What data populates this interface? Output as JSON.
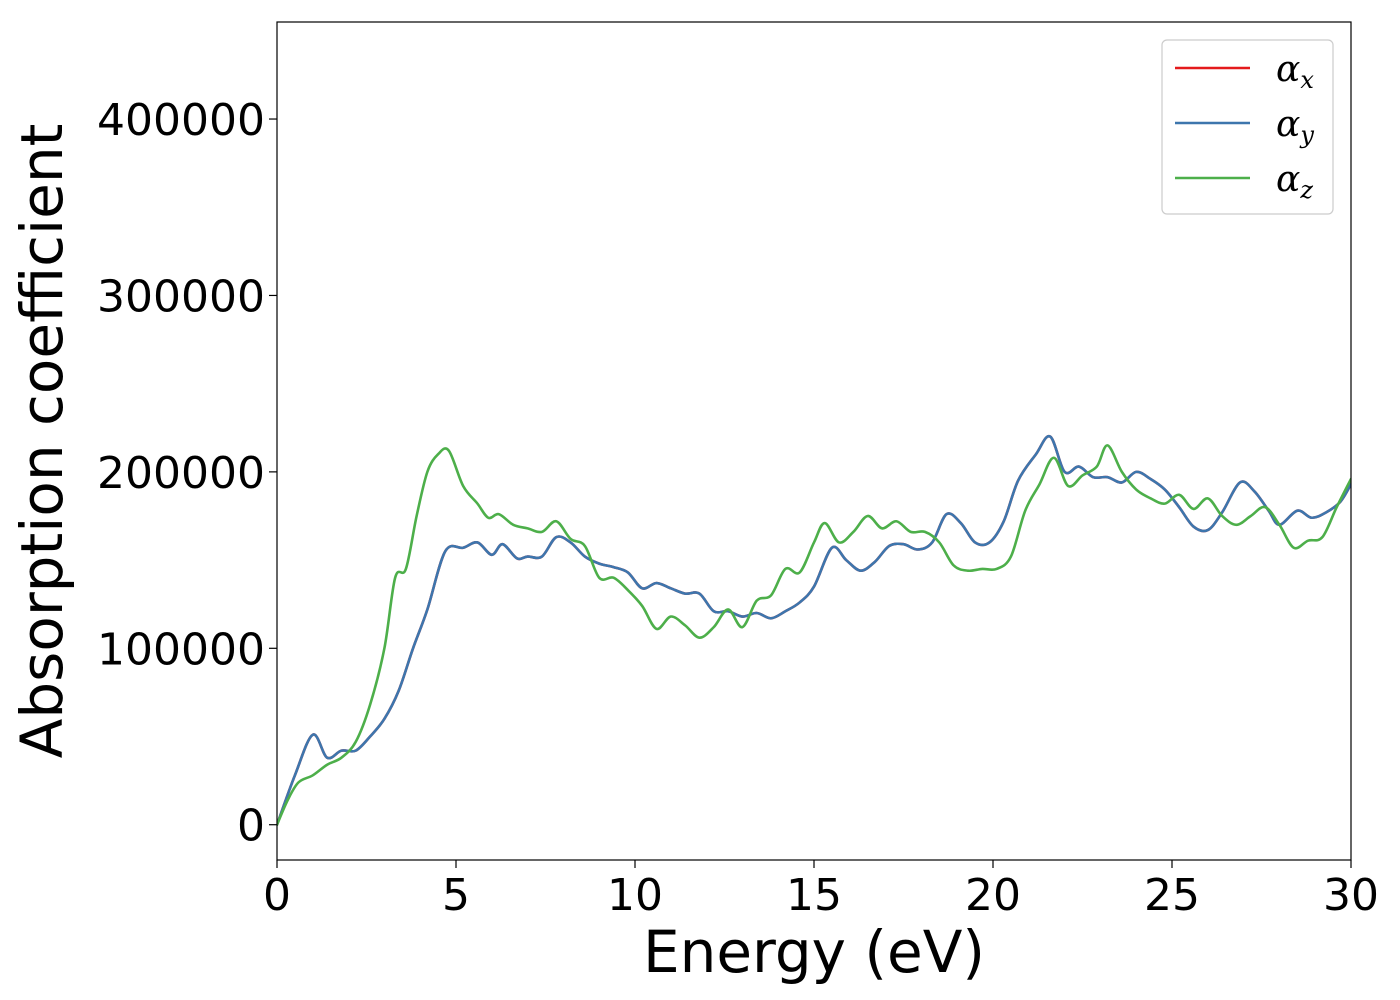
{
  "chart_data": {
    "type": "line",
    "title": "",
    "xlabel": "Energy (eV)",
    "ylabel": "Absorption coefficient",
    "xlim": [
      0,
      30
    ],
    "ylim": [
      -20000,
      455000
    ],
    "xticks": [
      0,
      5,
      10,
      15,
      20,
      25,
      30
    ],
    "yticks": [
      0,
      100000,
      200000,
      300000,
      400000
    ],
    "grid": false,
    "legend": "top-right",
    "series": [
      {
        "name": "α_x",
        "legend_symbol": "α",
        "legend_subscript": "x",
        "color": "#e41a1c",
        "points": [
          [
            0,
            0
          ],
          [
            0.5,
            28000
          ],
          [
            1,
            51000
          ],
          [
            1.4,
            38000
          ],
          [
            1.8,
            42000
          ],
          [
            2.2,
            42000
          ],
          [
            2.6,
            50000
          ],
          [
            3,
            60000
          ],
          [
            3.4,
            76000
          ],
          [
            3.8,
            100000
          ],
          [
            4.2,
            122000
          ],
          [
            4.7,
            155000
          ],
          [
            5.2,
            157000
          ],
          [
            5.6,
            160000
          ],
          [
            6,
            153000
          ],
          [
            6.3,
            159000
          ],
          [
            6.7,
            151000
          ],
          [
            7,
            152000
          ],
          [
            7.4,
            152000
          ],
          [
            7.8,
            163000
          ],
          [
            8.2,
            160000
          ],
          [
            8.6,
            152000
          ],
          [
            9,
            148000
          ],
          [
            9.4,
            146000
          ],
          [
            9.8,
            143000
          ],
          [
            10.2,
            134000
          ],
          [
            10.6,
            137000
          ],
          [
            11,
            134000
          ],
          [
            11.4,
            131000
          ],
          [
            11.8,
            131000
          ],
          [
            12.2,
            121000
          ],
          [
            12.6,
            121000
          ],
          [
            13,
            118000
          ],
          [
            13.4,
            120000
          ],
          [
            13.8,
            117000
          ],
          [
            14.2,
            121000
          ],
          [
            14.6,
            126000
          ],
          [
            15,
            135000
          ],
          [
            15.5,
            157000
          ],
          [
            15.9,
            150000
          ],
          [
            16.3,
            144000
          ],
          [
            16.7,
            149000
          ],
          [
            17.1,
            158000
          ],
          [
            17.5,
            159000
          ],
          [
            17.9,
            156000
          ],
          [
            18.3,
            160000
          ],
          [
            18.7,
            176000
          ],
          [
            19.1,
            171000
          ],
          [
            19.5,
            160000
          ],
          [
            19.9,
            160000
          ],
          [
            20.3,
            172000
          ],
          [
            20.7,
            195000
          ],
          [
            21.2,
            210000
          ],
          [
            21.6,
            220000
          ],
          [
            22,
            200000
          ],
          [
            22.4,
            203000
          ],
          [
            22.8,
            197000
          ],
          [
            23.2,
            197000
          ],
          [
            23.6,
            194000
          ],
          [
            24,
            200000
          ],
          [
            24.4,
            196000
          ],
          [
            24.8,
            190000
          ],
          [
            25.2,
            180000
          ],
          [
            25.6,
            169000
          ],
          [
            26,
            167000
          ],
          [
            26.4,
            177000
          ],
          [
            26.9,
            194000
          ],
          [
            27.3,
            189000
          ],
          [
            27.7,
            178000
          ],
          [
            28,
            170000
          ],
          [
            28.5,
            178000
          ],
          [
            28.9,
            174000
          ],
          [
            29.3,
            177000
          ],
          [
            29.7,
            183000
          ],
          [
            30,
            193000
          ]
        ]
      },
      {
        "name": "α_y",
        "legend_symbol": "α",
        "legend_subscript": "y",
        "color": "#3d76ad",
        "points": [
          [
            0,
            0
          ],
          [
            0.5,
            28000
          ],
          [
            1,
            51000
          ],
          [
            1.4,
            38000
          ],
          [
            1.8,
            42000
          ],
          [
            2.2,
            42000
          ],
          [
            2.6,
            50000
          ],
          [
            3,
            60000
          ],
          [
            3.4,
            76000
          ],
          [
            3.8,
            100000
          ],
          [
            4.2,
            122000
          ],
          [
            4.7,
            155000
          ],
          [
            5.2,
            157000
          ],
          [
            5.6,
            160000
          ],
          [
            6,
            153000
          ],
          [
            6.3,
            159000
          ],
          [
            6.7,
            151000
          ],
          [
            7,
            152000
          ],
          [
            7.4,
            152000
          ],
          [
            7.8,
            163000
          ],
          [
            8.2,
            160000
          ],
          [
            8.6,
            152000
          ],
          [
            9,
            148000
          ],
          [
            9.4,
            146000
          ],
          [
            9.8,
            143000
          ],
          [
            10.2,
            134000
          ],
          [
            10.6,
            137000
          ],
          [
            11,
            134000
          ],
          [
            11.4,
            131000
          ],
          [
            11.8,
            131000
          ],
          [
            12.2,
            121000
          ],
          [
            12.6,
            121000
          ],
          [
            13,
            118000
          ],
          [
            13.4,
            120000
          ],
          [
            13.8,
            117000
          ],
          [
            14.2,
            121000
          ],
          [
            14.6,
            126000
          ],
          [
            15,
            135000
          ],
          [
            15.5,
            157000
          ],
          [
            15.9,
            150000
          ],
          [
            16.3,
            144000
          ],
          [
            16.7,
            149000
          ],
          [
            17.1,
            158000
          ],
          [
            17.5,
            159000
          ],
          [
            17.9,
            156000
          ],
          [
            18.3,
            160000
          ],
          [
            18.7,
            176000
          ],
          [
            19.1,
            171000
          ],
          [
            19.5,
            160000
          ],
          [
            19.9,
            160000
          ],
          [
            20.3,
            172000
          ],
          [
            20.7,
            195000
          ],
          [
            21.2,
            210000
          ],
          [
            21.6,
            220000
          ],
          [
            22,
            200000
          ],
          [
            22.4,
            203000
          ],
          [
            22.8,
            197000
          ],
          [
            23.2,
            197000
          ],
          [
            23.6,
            194000
          ],
          [
            24,
            200000
          ],
          [
            24.4,
            196000
          ],
          [
            24.8,
            190000
          ],
          [
            25.2,
            180000
          ],
          [
            25.6,
            169000
          ],
          [
            26,
            167000
          ],
          [
            26.4,
            177000
          ],
          [
            26.9,
            194000
          ],
          [
            27.3,
            189000
          ],
          [
            27.7,
            178000
          ],
          [
            28,
            170000
          ],
          [
            28.5,
            178000
          ],
          [
            28.9,
            174000
          ],
          [
            29.3,
            177000
          ],
          [
            29.7,
            183000
          ],
          [
            30,
            193000
          ]
        ]
      },
      {
        "name": "α_z",
        "legend_symbol": "α",
        "legend_subscript": "z",
        "color": "#4daf4a",
        "points": [
          [
            0,
            0
          ],
          [
            0.3,
            14000
          ],
          [
            0.6,
            24000
          ],
          [
            1,
            28000
          ],
          [
            1.4,
            34000
          ],
          [
            1.8,
            38000
          ],
          [
            2.2,
            47000
          ],
          [
            2.6,
            68000
          ],
          [
            3,
            100000
          ],
          [
            3.3,
            140000
          ],
          [
            3.6,
            145000
          ],
          [
            3.9,
            175000
          ],
          [
            4.2,
            200000
          ],
          [
            4.5,
            210000
          ],
          [
            4.8,
            212000
          ],
          [
            5.2,
            192000
          ],
          [
            5.6,
            182000
          ],
          [
            5.9,
            174000
          ],
          [
            6.2,
            176000
          ],
          [
            6.6,
            170000
          ],
          [
            7,
            168000
          ],
          [
            7.4,
            166000
          ],
          [
            7.8,
            172000
          ],
          [
            8.2,
            162000
          ],
          [
            8.6,
            158000
          ],
          [
            9,
            140000
          ],
          [
            9.4,
            140000
          ],
          [
            9.8,
            133000
          ],
          [
            10.2,
            124000
          ],
          [
            10.6,
            111000
          ],
          [
            11,
            118000
          ],
          [
            11.4,
            113000
          ],
          [
            11.8,
            106000
          ],
          [
            12.2,
            112000
          ],
          [
            12.6,
            122000
          ],
          [
            13,
            112000
          ],
          [
            13.4,
            127000
          ],
          [
            13.8,
            130000
          ],
          [
            14.2,
            145000
          ],
          [
            14.6,
            143000
          ],
          [
            15,
            160000
          ],
          [
            15.3,
            171000
          ],
          [
            15.7,
            160000
          ],
          [
            16.1,
            166000
          ],
          [
            16.5,
            175000
          ],
          [
            16.9,
            168000
          ],
          [
            17.3,
            172000
          ],
          [
            17.7,
            166000
          ],
          [
            18.1,
            166000
          ],
          [
            18.5,
            160000
          ],
          [
            18.9,
            147000
          ],
          [
            19.3,
            144000
          ],
          [
            19.7,
            145000
          ],
          [
            20.1,
            145000
          ],
          [
            20.5,
            152000
          ],
          [
            20.9,
            178000
          ],
          [
            21.3,
            193000
          ],
          [
            21.7,
            208000
          ],
          [
            22.1,
            192000
          ],
          [
            22.5,
            198000
          ],
          [
            22.9,
            203000
          ],
          [
            23.2,
            215000
          ],
          [
            23.6,
            200000
          ],
          [
            24,
            190000
          ],
          [
            24.4,
            185000
          ],
          [
            24.8,
            182000
          ],
          [
            25.2,
            187000
          ],
          [
            25.6,
            179000
          ],
          [
            26,
            185000
          ],
          [
            26.4,
            175000
          ],
          [
            26.8,
            170000
          ],
          [
            27.2,
            175000
          ],
          [
            27.6,
            180000
          ],
          [
            28,
            170000
          ],
          [
            28.4,
            157000
          ],
          [
            28.8,
            161000
          ],
          [
            29.2,
            163000
          ],
          [
            29.6,
            180000
          ],
          [
            30,
            196000
          ]
        ]
      }
    ]
  }
}
